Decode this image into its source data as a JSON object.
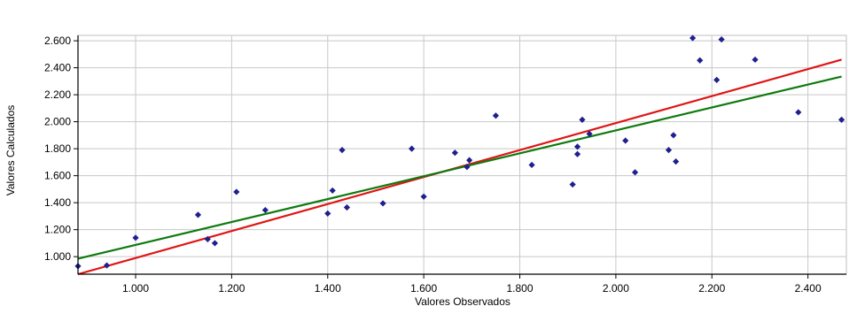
{
  "chart_data": {
    "type": "scatter",
    "xlabel": "Valores Observados",
    "ylabel": "Valores Calculados",
    "xlim": [
      880,
      2480
    ],
    "ylim": [
      870,
      2640
    ],
    "x_ticks": [
      1000,
      1200,
      1400,
      1600,
      1800,
      2000,
      2200,
      2400
    ],
    "x_tick_labels": [
      "1.000",
      "1.200",
      "1.400",
      "1.600",
      "1.800",
      "2.000",
      "2.200",
      "2.400"
    ],
    "y_ticks": [
      1000,
      1200,
      1400,
      1600,
      1800,
      2000,
      2200,
      2400,
      2600
    ],
    "y_tick_labels": [
      "1.000",
      "1.200",
      "1.400",
      "1.600",
      "1.800",
      "2.000",
      "2.200",
      "2.400",
      "2.600"
    ],
    "grid": true,
    "colors": {
      "points": "#1f1f8f",
      "line_red": "#e01414",
      "line_green": "#0f7a0f"
    },
    "points": [
      {
        "x": 880,
        "y": 930
      },
      {
        "x": 940,
        "y": 935
      },
      {
        "x": 1000,
        "y": 1140
      },
      {
        "x": 1130,
        "y": 1310
      },
      {
        "x": 1150,
        "y": 1130
      },
      {
        "x": 1165,
        "y": 1100
      },
      {
        "x": 1210,
        "y": 1480
      },
      {
        "x": 1270,
        "y": 1345
      },
      {
        "x": 1400,
        "y": 1320
      },
      {
        "x": 1410,
        "y": 1490
      },
      {
        "x": 1430,
        "y": 1790
      },
      {
        "x": 1440,
        "y": 1365
      },
      {
        "x": 1515,
        "y": 1395
      },
      {
        "x": 1575,
        "y": 1800
      },
      {
        "x": 1600,
        "y": 1445
      },
      {
        "x": 1665,
        "y": 1770
      },
      {
        "x": 1690,
        "y": 1665
      },
      {
        "x": 1695,
        "y": 1715
      },
      {
        "x": 1750,
        "y": 2045
      },
      {
        "x": 1825,
        "y": 1680
      },
      {
        "x": 1910,
        "y": 1535
      },
      {
        "x": 1920,
        "y": 1760
      },
      {
        "x": 1920,
        "y": 1815
      },
      {
        "x": 1930,
        "y": 2015
      },
      {
        "x": 1945,
        "y": 1910
      },
      {
        "x": 2020,
        "y": 1860
      },
      {
        "x": 2040,
        "y": 1625
      },
      {
        "x": 2110,
        "y": 1790
      },
      {
        "x": 2120,
        "y": 1900
      },
      {
        "x": 2125,
        "y": 1705
      },
      {
        "x": 2160,
        "y": 2620
      },
      {
        "x": 2175,
        "y": 2455
      },
      {
        "x": 2210,
        "y": 2310
      },
      {
        "x": 2220,
        "y": 2610
      },
      {
        "x": 2290,
        "y": 2460
      },
      {
        "x": 2380,
        "y": 2070
      },
      {
        "x": 2470,
        "y": 2015
      }
    ],
    "lines": [
      {
        "color": "#e01414",
        "x": [
          880,
          2470
        ],
        "y": [
          870,
          2460
        ]
      },
      {
        "color": "#0f7a0f",
        "x": [
          880,
          2470
        ],
        "y": [
          985,
          2335
        ]
      }
    ]
  }
}
